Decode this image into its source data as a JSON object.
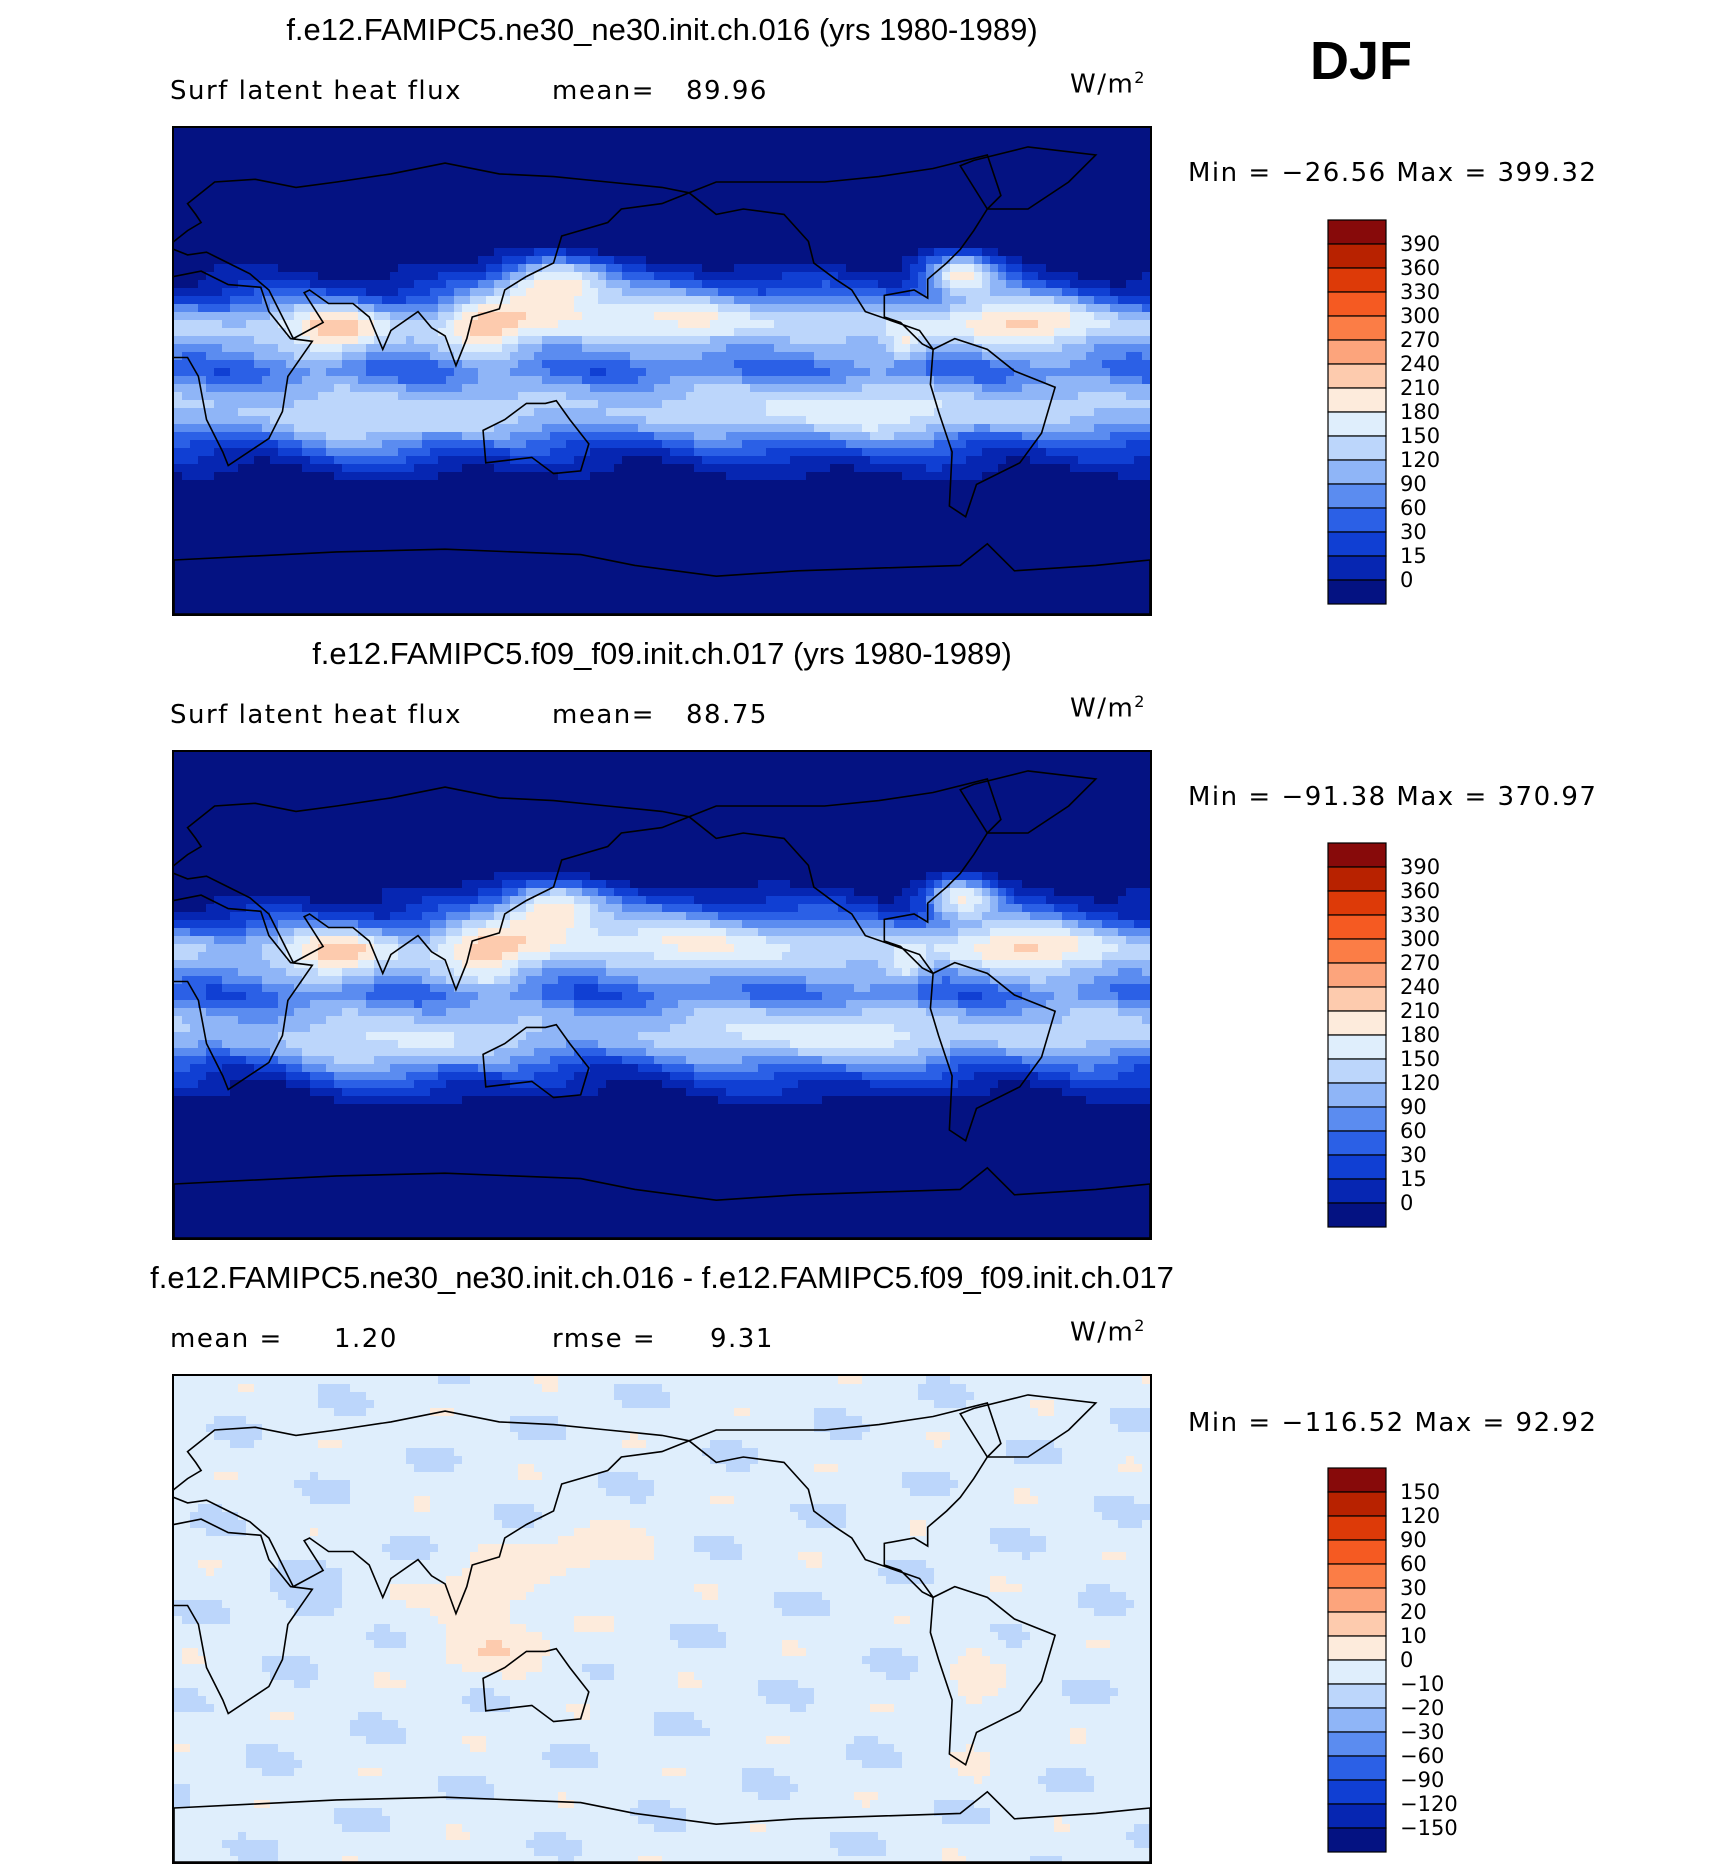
{
  "season": "DJF",
  "units": "W/m",
  "units_sup": "2",
  "panels": [
    {
      "title": "f.e12.FAMIPC5.ne30_ne30.init.ch.016 (yrs 1980-1989)",
      "left_label": "Surf  latent  heat  flux",
      "stat1_label": "mean=",
      "stat1_value": "89.96",
      "stat2_label": "",
      "stat2_value": "",
      "minmax": "Min  =  −26.56  Max  =  399.32"
    },
    {
      "title": "f.e12.FAMIPC5.f09_f09.init.ch.017 (yrs 1980-1989)",
      "left_label": "Surf  latent  heat  flux",
      "stat1_label": "mean=",
      "stat1_value": "88.75",
      "stat2_label": "",
      "stat2_value": "",
      "minmax": "Min  =  −91.38  Max  =  370.97"
    },
    {
      "title": "f.e12.FAMIPC5.ne30_ne30.init.ch.016 - f.e12.FAMIPC5.f09_f09.init.ch.017",
      "left_label": "",
      "stat1_label": "mean  =",
      "stat1_value": "1.20",
      "stat2_label": "rmse  =",
      "stat2_value": "9.31",
      "minmax": "Min  =  −116.52  Max  =    92.92"
    }
  ],
  "chart_data": [
    {
      "type": "heatmap",
      "title": "f.e12.FAMIPC5.ne30_ne30.init.ch.016 (yrs 1980-1989)",
      "variable": "Surf latent heat flux",
      "units": "W/m2",
      "season": "DJF",
      "mean": 89.96,
      "min": -26.56,
      "max": 399.32,
      "colorbar_levels": [
        "390",
        "360",
        "330",
        "300",
        "270",
        "240",
        "210",
        "180",
        "150",
        "120",
        "90",
        "60",
        "30",
        "15",
        "0"
      ],
      "colors": [
        "#870a0a",
        "#b82200",
        "#dd3a08",
        "#f55a22",
        "#fb7d46",
        "#fca47c",
        "#fdcbae",
        "#fdebdc",
        "#dfeefc",
        "#bcd6fb",
        "#8fb5f7",
        "#5b8cf0",
        "#2b60e6",
        "#103fd3",
        "#0626b2",
        "#041282"
      ]
    },
    {
      "type": "heatmap",
      "title": "f.e12.FAMIPC5.f09_f09.init.ch.017 (yrs 1980-1989)",
      "variable": "Surf latent heat flux",
      "units": "W/m2",
      "season": "DJF",
      "mean": 88.75,
      "min": -91.38,
      "max": 370.97,
      "colorbar_levels": [
        "390",
        "360",
        "330",
        "300",
        "270",
        "240",
        "210",
        "180",
        "150",
        "120",
        "90",
        "60",
        "30",
        "15",
        "0"
      ],
      "colors": [
        "#870a0a",
        "#b82200",
        "#dd3a08",
        "#f55a22",
        "#fb7d46",
        "#fca47c",
        "#fdcbae",
        "#fdebdc",
        "#dfeefc",
        "#bcd6fb",
        "#8fb5f7",
        "#5b8cf0",
        "#2b60e6",
        "#103fd3",
        "#0626b2",
        "#041282"
      ]
    },
    {
      "type": "heatmap",
      "title": "f.e12.FAMIPC5.ne30_ne30.init.ch.016 - f.e12.FAMIPC5.f09_f09.init.ch.017",
      "units": "W/m2",
      "season": "DJF",
      "mean": 1.2,
      "rmse": 9.31,
      "min": -116.52,
      "max": 92.92,
      "colorbar_levels": [
        "150",
        "120",
        "90",
        "60",
        "30",
        "20",
        "10",
        "0",
        "−10",
        "−20",
        "−30",
        "−60",
        "−90",
        "−120",
        "−150"
      ],
      "colors": [
        "#870a0a",
        "#b82200",
        "#dd3a08",
        "#f55a22",
        "#fb7d46",
        "#fca47c",
        "#fdcbae",
        "#fdebdc",
        "#dfeefc",
        "#bcd6fb",
        "#8fb5f7",
        "#5b8cf0",
        "#2b60e6",
        "#103fd3",
        "#0626b2",
        "#041282"
      ]
    }
  ]
}
